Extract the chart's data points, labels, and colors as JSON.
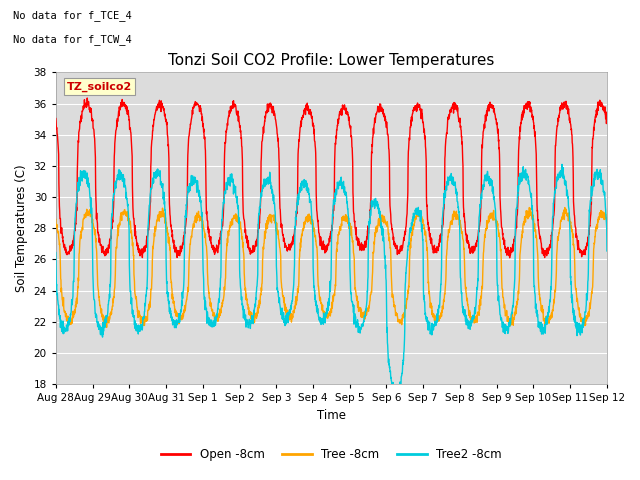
{
  "title": "Tonzi Soil CO2 Profile: Lower Temperatures",
  "ylabel": "Soil Temperatures (C)",
  "xlabel": "Time",
  "annotation_lines": [
    "No data for f_TCE_4",
    "No data for f_TCW_4"
  ],
  "box_label": "TZ_soilco2",
  "ylim": [
    18,
    38
  ],
  "yticks": [
    18,
    20,
    22,
    24,
    26,
    28,
    30,
    32,
    34,
    36,
    38
  ],
  "xtick_labels": [
    "Aug 28",
    "Aug 29",
    "Aug 30",
    "Aug 31",
    "Sep 1",
    "Sep 2",
    "Sep 3",
    "Sep 4",
    "Sep 5",
    "Sep 6",
    "Sep 7",
    "Sep 8",
    "Sep 9",
    "Sep 10",
    "Sep 11",
    "Sep 12"
  ],
  "bg_color": "#dcdcdc",
  "line_colors": {
    "open": "#ff0000",
    "tree": "#ffa500",
    "tree2": "#00ccdd"
  },
  "legend_labels": [
    "Open -8cm",
    "Tree -8cm",
    "Tree2 -8cm"
  ],
  "n_days": 15,
  "pts_per_day": 144
}
